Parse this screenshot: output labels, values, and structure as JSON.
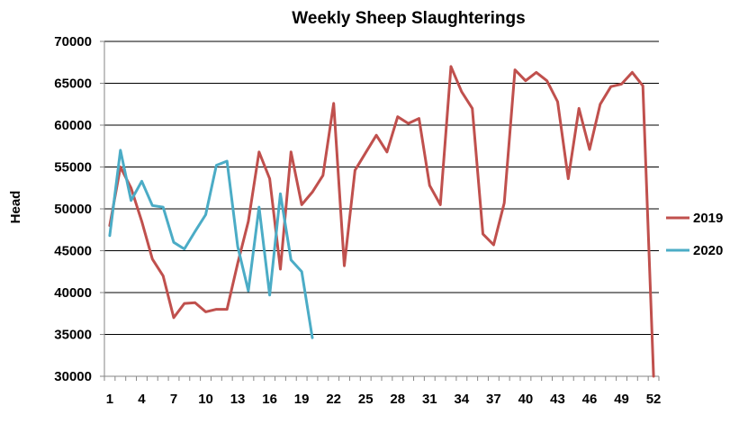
{
  "chart_data": {
    "type": "line",
    "title": "Weekly Sheep Slaughterings",
    "xlabel": "",
    "ylabel": "Head",
    "xlim": [
      1,
      52
    ],
    "ylim": [
      30000,
      70000
    ],
    "y_ticks": [
      30000,
      35000,
      40000,
      45000,
      50000,
      55000,
      60000,
      65000,
      70000
    ],
    "x_ticks": [
      1,
      4,
      7,
      10,
      13,
      16,
      19,
      22,
      25,
      28,
      31,
      34,
      37,
      40,
      43,
      46,
      49,
      52
    ],
    "grid": "horizontal",
    "legend_position": "right",
    "series": [
      {
        "name": "2019",
        "color": "#C0504D",
        "x": [
          1,
          2,
          3,
          4,
          5,
          6,
          7,
          8,
          9,
          10,
          11,
          12,
          13,
          14,
          15,
          16,
          17,
          18,
          19,
          20,
          21,
          22,
          23,
          24,
          25,
          26,
          27,
          28,
          29,
          30,
          31,
          32,
          33,
          34,
          35,
          36,
          37,
          38,
          39,
          40,
          41,
          42,
          43,
          44,
          45,
          46,
          47,
          48,
          49,
          50,
          51,
          52
        ],
        "values": [
          48000,
          55000,
          52500,
          48500,
          44000,
          42000,
          37000,
          38700,
          38800,
          37700,
          38000,
          38000,
          43500,
          48500,
          56800,
          53600,
          42800,
          56800,
          50500,
          52000,
          54000,
          62600,
          43200,
          54600,
          56700,
          58800,
          56800,
          61000,
          60200,
          60800,
          52800,
          50500,
          67000,
          64000,
          62000,
          47000,
          45700,
          50700,
          66600,
          65300,
          66300,
          65300,
          62800,
          53600,
          62000,
          57100,
          62500,
          64600,
          64900,
          66300,
          64700,
          30000
        ]
      },
      {
        "name": "2020",
        "color": "#4BACC6",
        "x": [
          1,
          2,
          3,
          4,
          5,
          6,
          7,
          8,
          9,
          10,
          11,
          12,
          13,
          14,
          15,
          16,
          17,
          18,
          19,
          20
        ],
        "values": [
          46800,
          57000,
          51000,
          53300,
          50400,
          50200,
          46000,
          45200,
          47300,
          49300,
          55200,
          55700,
          45500,
          40200,
          50200,
          39700,
          51800,
          43900,
          42500,
          34600
        ]
      }
    ]
  }
}
